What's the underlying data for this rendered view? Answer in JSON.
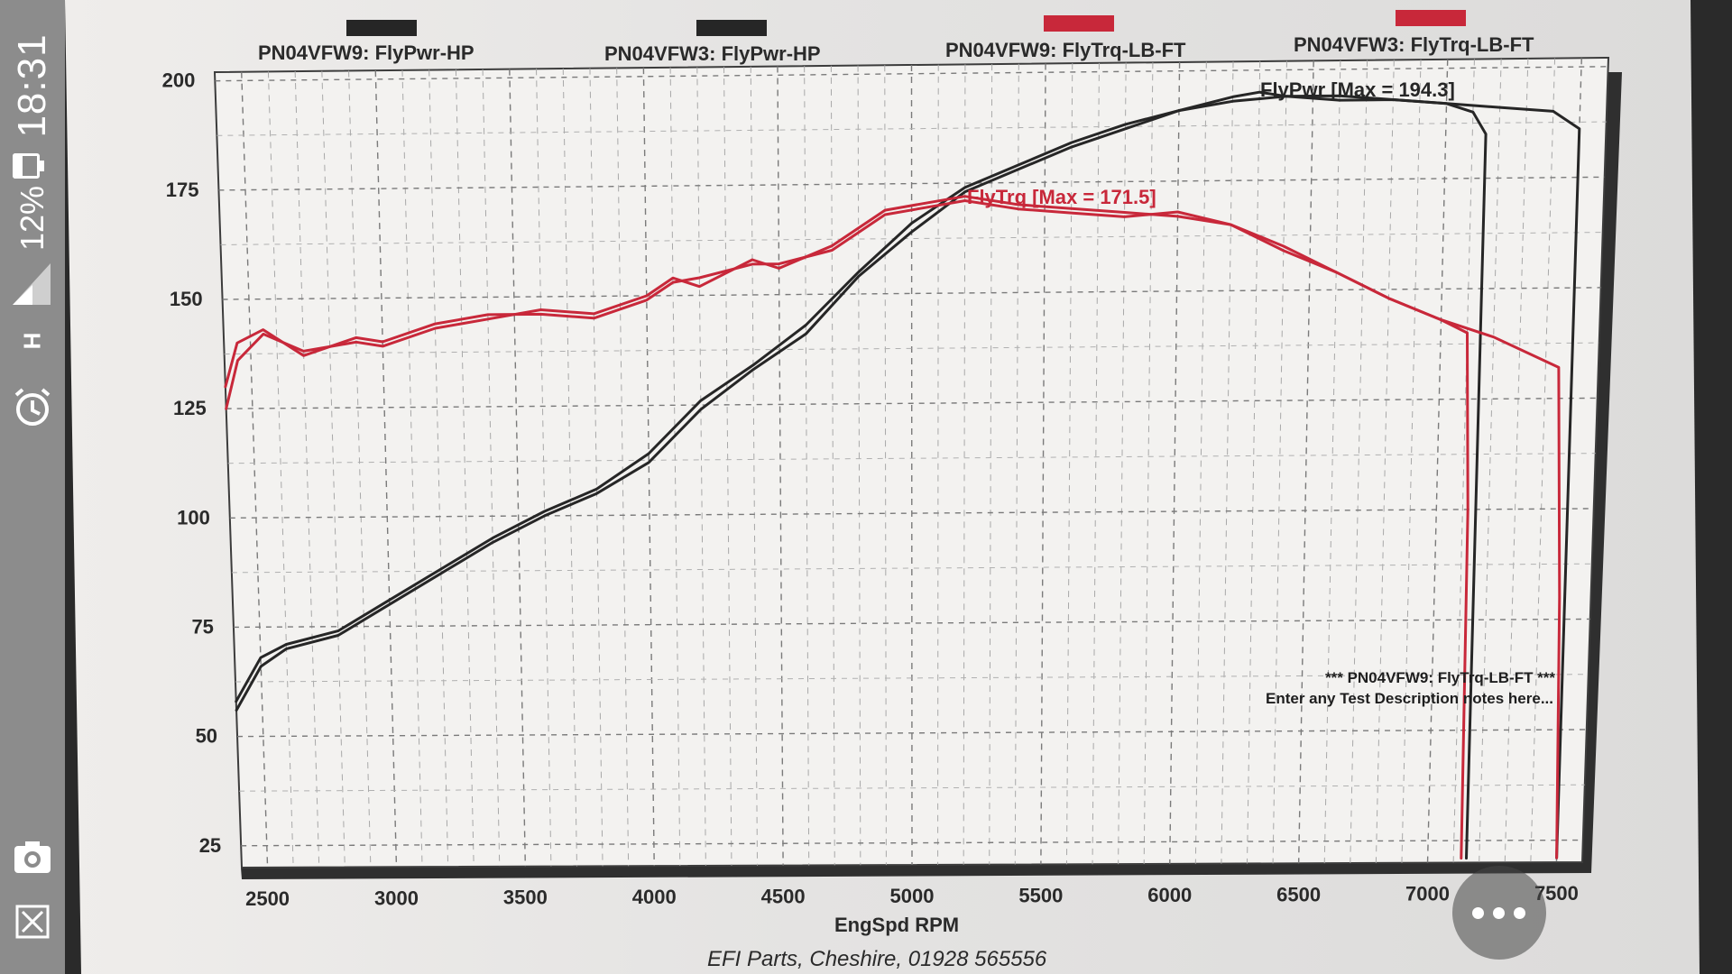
{
  "status_bar": {
    "time": "18:31",
    "battery_percent": "12%",
    "network_label": "H",
    "icons": [
      "battery-icon",
      "signal-icon",
      "data-arrows-icon",
      "alarm-icon",
      "screenshot-icon",
      "close-icon"
    ]
  },
  "chart_data": {
    "type": "line",
    "title": "",
    "xlabel": "EngSpd RPM",
    "ylabel": "",
    "xlim": [
      2400,
      7600
    ],
    "ylim": [
      20,
      202
    ],
    "x_ticks": [
      "2500",
      "3000",
      "3500",
      "4000",
      "4500",
      "5000",
      "5500",
      "6000",
      "6500",
      "7000",
      "7500"
    ],
    "y_ticks": [
      "200",
      "175",
      "150",
      "125",
      "100",
      "75",
      "50",
      "25"
    ],
    "grid": true,
    "legend_position": "top",
    "legend": [
      {
        "label": "PN04VFW9: FlyPwr-HP",
        "color": "#262626"
      },
      {
        "label": "PN04VFW3: FlyPwr-HP",
        "color": "#262626"
      },
      {
        "label": "PN04VFW9: FlyTrq-LB-FT",
        "color": "#c8283a"
      },
      {
        "label": "PN04VFW3: FlyTrq-LB-FT",
        "color": "#c8283a"
      }
    ],
    "series": [
      {
        "name": "PN04VFW9: FlyPwr-HP",
        "color": "#262626",
        "x": [
          2400,
          2500,
          2600,
          2800,
          3000,
          3200,
          3400,
          3600,
          3800,
          4000,
          4200,
          4400,
          4600,
          4800,
          5000,
          5200,
          5400,
          5600,
          5800,
          6000,
          6200,
          6300,
          6400,
          6600,
          6800,
          7000,
          7100,
          7150,
          7150
        ],
        "y": [
          58,
          68,
          71,
          74,
          81,
          88,
          95,
          101,
          106,
          114,
          126,
          134,
          143,
          155,
          166,
          174,
          179,
          184,
          188,
          191,
          194,
          195,
          194,
          194,
          193,
          192,
          190,
          185,
          21
        ]
      },
      {
        "name": "PN04VFW3: FlyPwr-HP",
        "color": "#262626",
        "x": [
          2400,
          2500,
          2600,
          2800,
          3000,
          3200,
          3400,
          3600,
          3800,
          4000,
          4200,
          4400,
          4600,
          4800,
          5000,
          5200,
          5400,
          5600,
          5800,
          6000,
          6200,
          6400,
          6600,
          6800,
          7000,
          7200,
          7400,
          7500,
          7500
        ],
        "y": [
          56,
          66,
          70,
          73,
          80,
          87,
          94,
          100,
          105,
          112,
          124,
          133,
          141,
          154,
          164,
          173,
          178,
          183,
          187,
          191,
          193,
          194,
          193,
          193,
          192,
          191,
          190,
          186,
          21
        ]
      },
      {
        "name": "PN04VFW9: FlyTrq-LB-FT",
        "color": "#c8283a",
        "x": [
          2400,
          2450,
          2550,
          2700,
          2900,
          3000,
          3200,
          3400,
          3600,
          3800,
          4000,
          4100,
          4200,
          4400,
          4500,
          4700,
          4900,
          5100,
          5200,
          5400,
          5600,
          5800,
          6000,
          6200,
          6400,
          6600,
          6800,
          7000,
          7100,
          7120,
          7130
        ],
        "y": [
          125,
          136,
          142,
          138,
          140,
          139,
          143,
          145,
          147,
          146,
          150,
          154,
          152,
          158,
          156,
          161,
          169,
          171,
          172,
          170,
          169,
          168,
          167,
          165,
          160,
          154,
          148,
          143,
          140,
          100,
          21
        ]
      },
      {
        "name": "PN04VFW3: FlyTrq-LB-FT",
        "color": "#c8283a",
        "x": [
          2400,
          2450,
          2550,
          2700,
          2900,
          3000,
          3200,
          3400,
          3600,
          3800,
          4000,
          4100,
          4200,
          4400,
          4500,
          4700,
          4900,
          5100,
          5200,
          5400,
          5600,
          5800,
          6000,
          6200,
          6400,
          6600,
          6800,
          7000,
          7200,
          7450,
          7480,
          7500
        ],
        "y": [
          130,
          140,
          143,
          137,
          141,
          140,
          144,
          146,
          146,
          145,
          149,
          153,
          154,
          157,
          157,
          160,
          168,
          170,
          171,
          169,
          168,
          167,
          168,
          165,
          159,
          154,
          148,
          143,
          139,
          132,
          80,
          21
        ]
      }
    ],
    "annotations": [
      {
        "text": "FlyPwr [Max = 194.3]",
        "color": "#262626"
      },
      {
        "text": "FlyTrq [Max = 171.5]",
        "color": "#c8283a"
      }
    ],
    "notes": [
      "*** PN04VFW9: FlyTrq-LB-FT ***",
      "Enter any Test Description notes here..."
    ],
    "footer": "EFI Parts, Cheshire, 01928 565556"
  },
  "ui": {
    "more_button_icon": "more-dots-icon"
  }
}
